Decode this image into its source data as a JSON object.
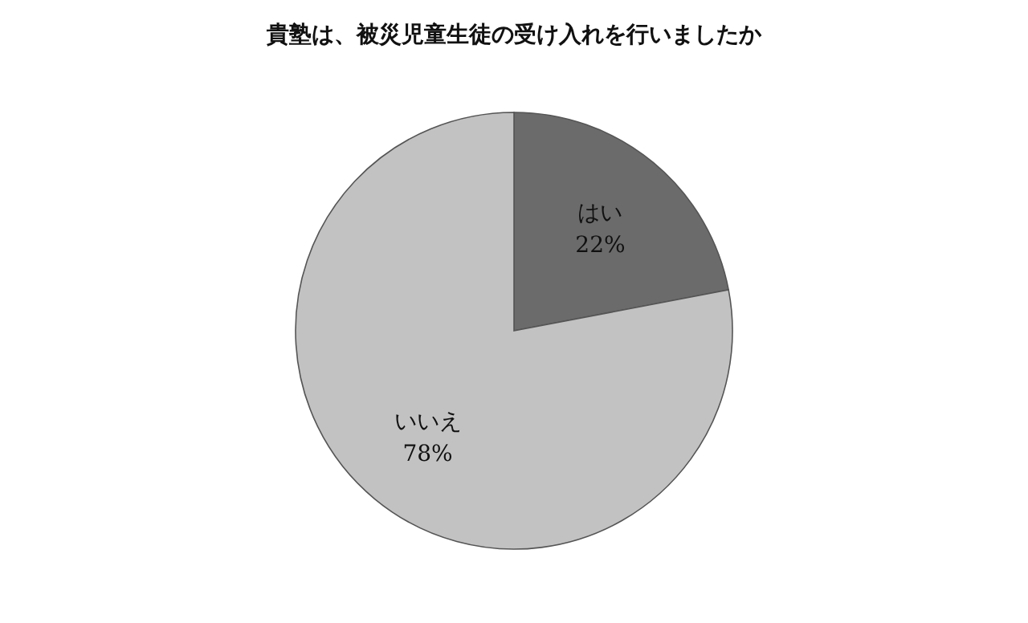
{
  "chart_data": {
    "type": "pie",
    "title": "貴塾は、被災児童生徒の受け入れを行いましたか",
    "categories": [
      "はい",
      "いいえ"
    ],
    "values": [
      22,
      78
    ],
    "colors": [
      "#6b6b6b",
      "#c2c2c2"
    ],
    "value_labels": [
      "22%",
      "78%"
    ],
    "legend": false
  }
}
